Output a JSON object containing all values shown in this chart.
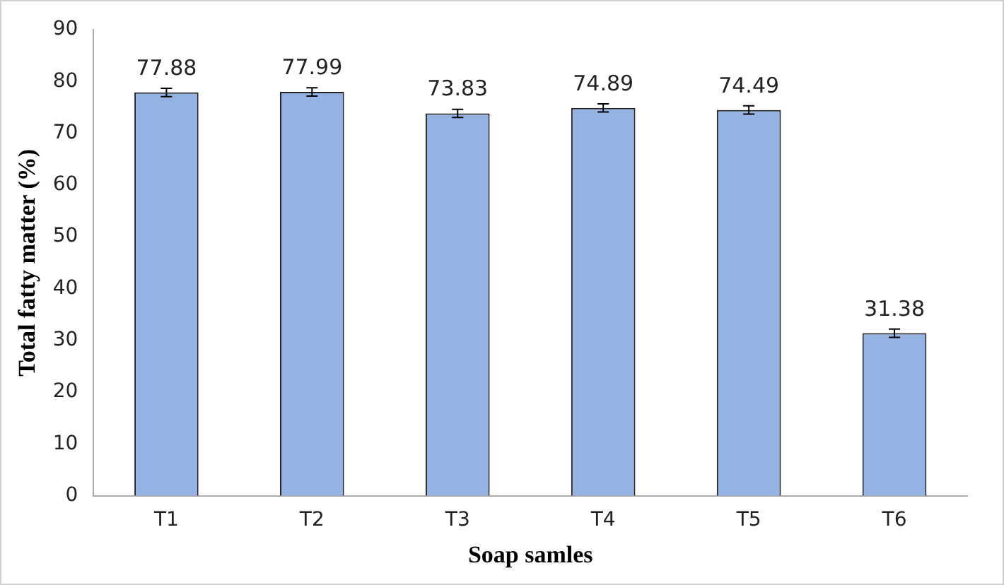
{
  "chart_data": {
    "type": "bar",
    "xlabel": "Soap samles",
    "ylabel": "Total fatty matter (%)",
    "categories": [
      "T1",
      "T2",
      "T3",
      "T4",
      "T5",
      "T6"
    ],
    "values": [
      77.88,
      77.99,
      73.83,
      74.89,
      74.49,
      31.38
    ],
    "errors": [
      0.8,
      0.8,
      0.8,
      0.8,
      0.8,
      0.8
    ],
    "color": "#94b2e2",
    "ylim": [
      0,
      90
    ],
    "yticks": [
      0,
      10,
      20,
      30,
      40,
      50,
      60,
      70,
      80,
      90
    ],
    "data_labels": true,
    "grid": false,
    "legend": false
  }
}
